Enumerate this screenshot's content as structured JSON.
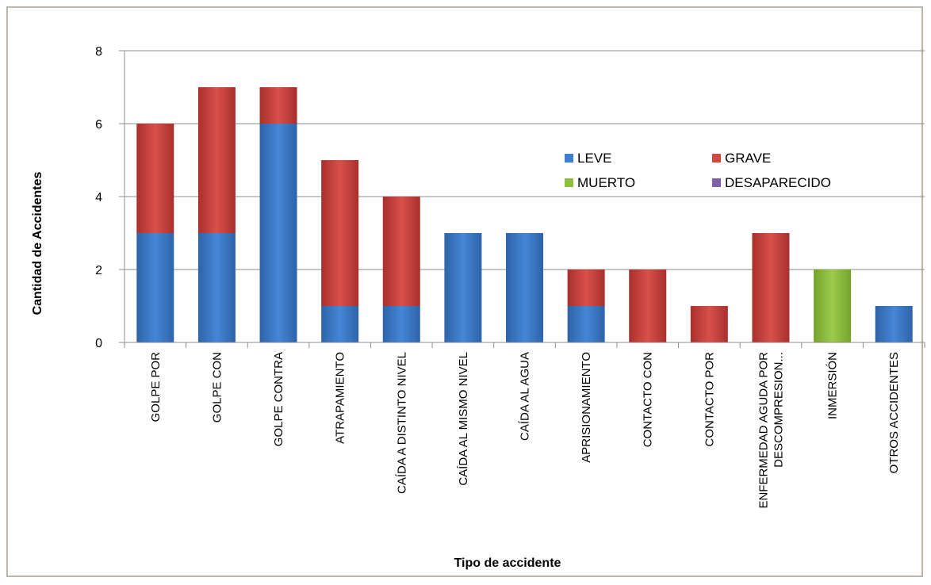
{
  "chart_data": {
    "type": "bar",
    "stacked": true,
    "xlabel": "Tipo de accidente",
    "ylabel": "Cantidad de Accidentes",
    "ylim": [
      0,
      8
    ],
    "yticks": [
      "0",
      "2",
      "4",
      "6",
      "8"
    ],
    "grid": true,
    "legend_position": "top-right",
    "categories": [
      [
        "GOLPE POR"
      ],
      [
        "GOLPE CON"
      ],
      [
        "GOLPE CONTRA"
      ],
      [
        "ATRAPAMIENTO"
      ],
      [
        "CAÍDA A DISTINTO NIVEL"
      ],
      [
        "CAÍDA AL MISMO NIVEL"
      ],
      [
        "CAÍDA AL AGUA"
      ],
      [
        "APRISIONAMIENTO"
      ],
      [
        "CONTACTO CON"
      ],
      [
        "CONTACTO POR"
      ],
      [
        "ENFERMEDAD AGUDA POR",
        "DESCOMPRESION..."
      ],
      [
        "INMERSIÓN"
      ],
      [
        "OTROS ACCIDENTES"
      ]
    ],
    "series": [
      {
        "name": "LEVE",
        "color": "#3f7fd0",
        "values": [
          3,
          3,
          6,
          1,
          1,
          3,
          3,
          1,
          0,
          0,
          0,
          0,
          1
        ]
      },
      {
        "name": "GRAVE",
        "color": "#d04a45",
        "values": [
          3,
          4,
          1,
          4,
          3,
          0,
          0,
          1,
          2,
          1,
          3,
          0,
          0
        ]
      },
      {
        "name": "MUERTO",
        "color": "#8ebf3f",
        "values": [
          0,
          0,
          0,
          0,
          0,
          0,
          0,
          0,
          0,
          0,
          0,
          2,
          0
        ]
      },
      {
        "name": "DESAPARECIDO",
        "color": "#7f5fa8",
        "values": [
          0,
          0,
          0,
          0,
          0,
          0,
          0,
          0,
          0,
          0,
          0,
          0,
          0
        ]
      }
    ]
  }
}
